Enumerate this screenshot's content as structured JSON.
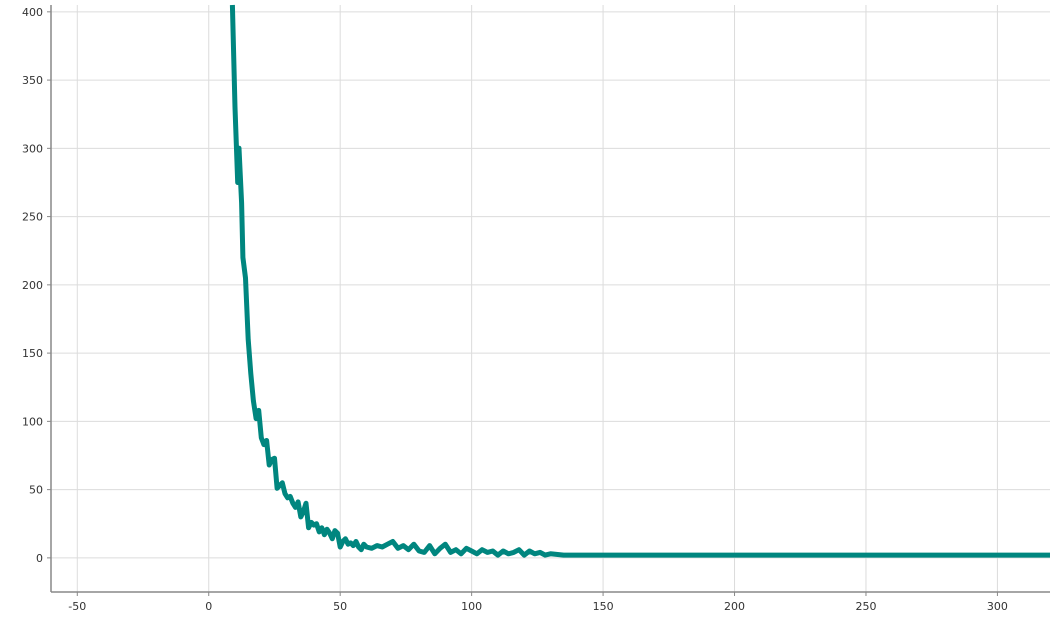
{
  "chart_data": {
    "type": "line",
    "title": "",
    "xlabel": "",
    "ylabel": "",
    "xlim": [
      -60,
      320
    ],
    "ylim": [
      -25,
      405
    ],
    "grid": true,
    "x_ticks": [
      -50,
      0,
      50,
      100,
      150,
      200,
      250,
      300
    ],
    "y_ticks": [
      0,
      50,
      100,
      150,
      200,
      250,
      300,
      350,
      400
    ],
    "x_tick_labels": [
      "-50",
      "0",
      "50",
      "100",
      "150",
      "200",
      "250",
      "300"
    ],
    "y_tick_labels": [
      "0",
      "50",
      "100",
      "150",
      "200",
      "250",
      "300",
      "350",
      "400"
    ],
    "series": [
      {
        "color": "#00867f",
        "x": [
          9,
          10,
          11,
          11.5,
          12,
          12.5,
          13,
          14,
          15,
          16,
          17,
          18,
          19,
          20,
          21,
          22,
          23,
          24,
          25,
          26,
          27,
          28,
          29,
          30,
          31,
          32,
          33,
          34,
          35,
          36,
          37,
          38,
          39,
          40,
          41,
          42,
          43,
          44,
          45,
          46,
          47,
          48,
          49,
          50,
          51,
          52,
          53,
          54,
          55,
          56,
          57,
          58,
          59,
          60,
          62,
          64,
          66,
          68,
          70,
          72,
          74,
          76,
          78,
          80,
          82,
          84,
          86,
          88,
          90,
          92,
          94,
          96,
          98,
          100,
          102,
          104,
          106,
          108,
          110,
          112,
          114,
          116,
          118,
          120,
          122,
          124,
          126,
          128,
          130,
          135,
          140,
          150,
          160,
          180,
          200,
          220,
          240,
          260,
          280,
          300,
          320
        ],
        "y": [
          405,
          330,
          275,
          300,
          280,
          260,
          220,
          205,
          160,
          135,
          115,
          102,
          108,
          88,
          83,
          86,
          68,
          72,
          73,
          51,
          53,
          55,
          47,
          44,
          45,
          40,
          37,
          41,
          30,
          34,
          40,
          22,
          26,
          24,
          25,
          19,
          22,
          17,
          21,
          18,
          14,
          20,
          18,
          8,
          12,
          14,
          10,
          11,
          9,
          12,
          8,
          6,
          10,
          8,
          7,
          9,
          8,
          10,
          12,
          7,
          9,
          6,
          10,
          5,
          4,
          9,
          3,
          7,
          10,
          4,
          6,
          3,
          7,
          5,
          3,
          6,
          4,
          5,
          2,
          5,
          3,
          4,
          6,
          2,
          5,
          3,
          4,
          2,
          3,
          2,
          2,
          2,
          2,
          2,
          2,
          2,
          2,
          2,
          2,
          2,
          2
        ]
      }
    ]
  }
}
